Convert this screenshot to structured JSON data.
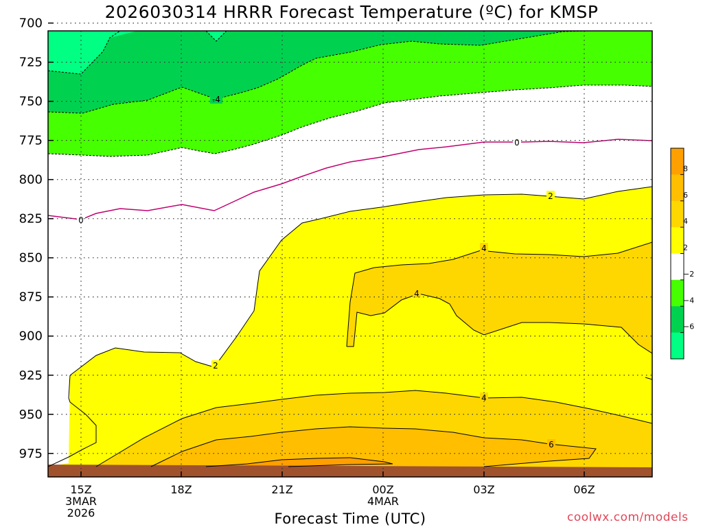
{
  "title": "2026030314 HRRR Forecast Temperature (ºC) for KMSP",
  "xlabel": "Forecast Time (UTC)",
  "credit": "coolwx.com/models",
  "chart_data": {
    "type": "contour",
    "y_axis": {
      "quantity": "pressure (hPa)",
      "range": [
        705,
        990
      ],
      "inverted": true,
      "ticks": [
        "700",
        "725",
        "750",
        "775",
        "800",
        "825",
        "850",
        "875",
        "900",
        "925",
        "950",
        "975"
      ]
    },
    "x_axis": {
      "quantity": "forecast time (UTC)",
      "ticks": [
        {
          "line1": "15Z",
          "line2": "3MAR",
          "line3": "2026"
        },
        {
          "line1": "18Z",
          "line2": "",
          "line3": ""
        },
        {
          "line1": "21Z",
          "line2": "",
          "line3": ""
        },
        {
          "line1": "00Z",
          "line2": "4MAR",
          "line3": ""
        },
        {
          "line1": "03Z",
          "line2": "",
          "line3": ""
        },
        {
          "line1": "06Z",
          "line2": "",
          "line3": ""
        }
      ]
    },
    "grid": true,
    "colorbar": {
      "placement": "right",
      "levels": [
        "8",
        "6",
        "4",
        "2",
        "−2",
        "−4",
        "−6"
      ],
      "colors": [
        "#ff9f00",
        "#ffbe00",
        "#ffd700",
        "#ffff00",
        "#ffffff",
        "#46ff00",
        "#00d250",
        "#00ff82"
      ]
    },
    "contour_labels": [
      "-4",
      "0",
      "2",
      "2",
      "4",
      "4",
      "4",
      "6"
    ],
    "colors": {
      "ground": "#a0522d",
      "zero_isotherm": "#c0006f",
      "contour": "#000000"
    }
  }
}
